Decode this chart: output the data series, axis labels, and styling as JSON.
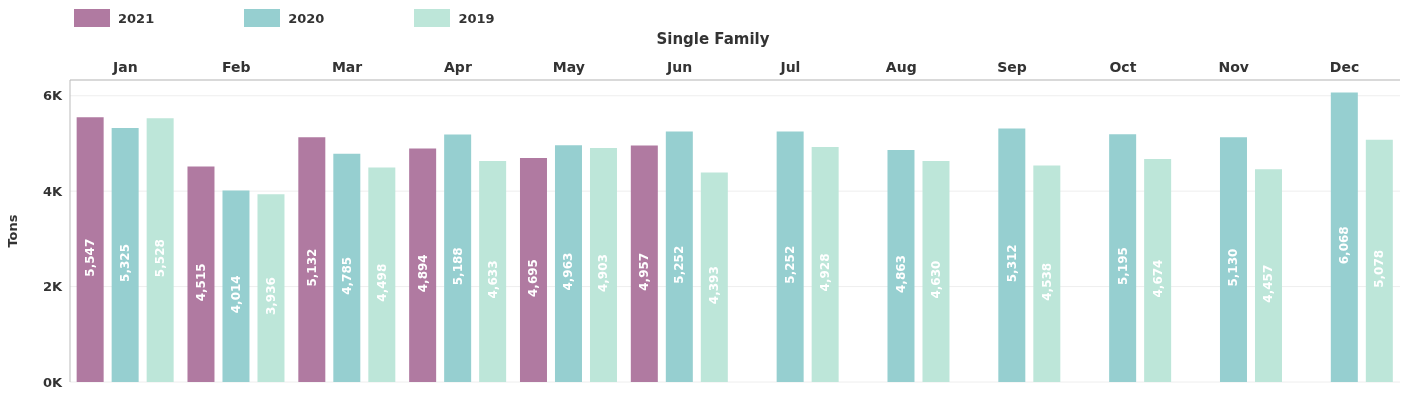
{
  "chart_data": {
    "type": "bar",
    "title": "Single Family",
    "ylabel": "Tons",
    "categories": [
      "Jan",
      "Feb",
      "Mar",
      "Apr",
      "May",
      "Jun",
      "Jul",
      "Aug",
      "Sep",
      "Oct",
      "Nov",
      "Dec"
    ],
    "series": [
      {
        "name": "2021",
        "color": "#b07aa1",
        "values": [
          5547,
          4515,
          5132,
          4894,
          4695,
          4957,
          null,
          null,
          null,
          null,
          null,
          null
        ],
        "value_labels": [
          "5,547",
          "4,515",
          "5,132",
          "4,894",
          "4,695",
          "4,957",
          null,
          null,
          null,
          null,
          null,
          null
        ]
      },
      {
        "name": "2020",
        "color": "#96cfd0",
        "values": [
          5325,
          4014,
          4785,
          5188,
          4963,
          5252,
          5252,
          4863,
          5312,
          5195,
          5130,
          6068
        ],
        "value_labels": [
          "5,325",
          "4,014",
          "4,785",
          "5,188",
          "4,963",
          "5,252",
          "5,252",
          "4,863",
          "5,312",
          "5,195",
          "5,130",
          "6,068"
        ]
      },
      {
        "name": "2019",
        "color": "#bde6d9",
        "values": [
          5528,
          3936,
          4498,
          4633,
          4903,
          4393,
          4928,
          4630,
          4538,
          4674,
          4457,
          5078
        ],
        "value_labels": [
          "5,528",
          "3,936",
          "4,498",
          "4,633",
          "4,903",
          "4,393",
          "4,928",
          "4,630",
          "4,538",
          "4,674",
          "4,457",
          "5,078"
        ]
      }
    ],
    "ylim": [
      0,
      6330
    ],
    "yticks": [
      {
        "value": 0,
        "label": "0K"
      },
      {
        "value": 2000,
        "label": "2K"
      },
      {
        "value": 4000,
        "label": "4K"
      },
      {
        "value": 6000,
        "label": "6K"
      }
    ],
    "grid": "y",
    "legend": "top left"
  }
}
